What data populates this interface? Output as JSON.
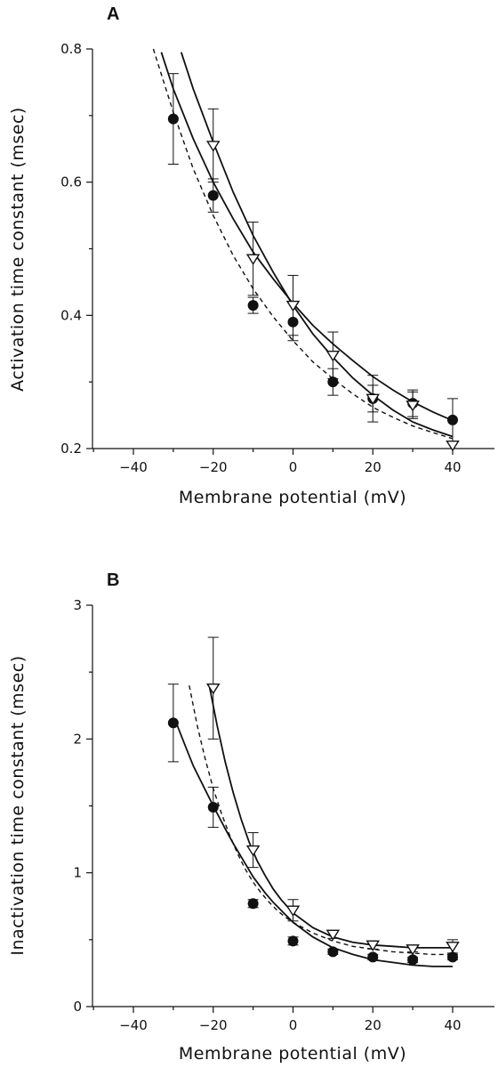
{
  "chart_data": [
    {
      "panel": "A",
      "type": "scatter",
      "xlabel": "Membrane potential (mV)",
      "ylabel": "Activation time constant (msec)",
      "xlim": [
        -50,
        50
      ],
      "ylim": [
        0.2,
        0.8
      ],
      "xticks": [
        -40,
        -20,
        0,
        20,
        40
      ],
      "yticks": [
        0.2,
        0.4,
        0.6,
        0.8
      ],
      "ytick_labels": [
        "0.2",
        "0.4",
        "0.6",
        "0.8"
      ],
      "grid": false,
      "series": [
        {
          "marker": "filled-circle",
          "x": [
            -30,
            -20,
            -10,
            0,
            10,
            20,
            30,
            40
          ],
          "y": [
            0.695,
            0.58,
            0.415,
            0.39,
            0.3,
            0.275,
            0.268,
            0.243
          ],
          "err": [
            0.068,
            0.025,
            0.012,
            0.028,
            0.02,
            0.035,
            0.02,
            0.032
          ]
        },
        {
          "marker": "open-triangle-down",
          "x": [
            -20,
            -10,
            0,
            10,
            20,
            30,
            40
          ],
          "y": [
            0.655,
            0.485,
            0.415,
            0.34,
            0.275,
            0.265,
            0.205
          ],
          "err": [
            0.055,
            0.055,
            0.045,
            0.035,
            0.02,
            0.02,
            0.0
          ]
        }
      ],
      "fits": [
        {
          "style": "solid",
          "x": [
            -33,
            -30,
            -25,
            -20,
            -15,
            -10,
            -5,
            0,
            5,
            10,
            15,
            20,
            25,
            30,
            35,
            40
          ],
          "y": [
            0.795,
            0.74,
            0.665,
            0.6,
            0.545,
            0.495,
            0.455,
            0.418,
            0.385,
            0.357,
            0.332,
            0.308,
            0.288,
            0.27,
            0.255,
            0.242
          ]
        },
        {
          "style": "solid",
          "x": [
            -28,
            -25,
            -20,
            -15,
            -10,
            -5,
            0,
            5,
            10,
            15,
            20,
            25,
            30,
            35,
            40
          ],
          "y": [
            0.795,
            0.74,
            0.66,
            0.585,
            0.52,
            0.465,
            0.415,
            0.372,
            0.337,
            0.306,
            0.28,
            0.258,
            0.24,
            0.228,
            0.218
          ]
        },
        {
          "style": "dashed",
          "x": [
            -35,
            -30,
            -25,
            -20,
            -15,
            -10,
            -5,
            0,
            5,
            10,
            15,
            20,
            25,
            30,
            35,
            40
          ],
          "y": [
            0.8,
            0.705,
            0.62,
            0.55,
            0.49,
            0.44,
            0.398,
            0.362,
            0.33,
            0.305,
            0.282,
            0.262,
            0.247,
            0.234,
            0.224,
            0.215
          ]
        }
      ]
    },
    {
      "panel": "B",
      "type": "scatter",
      "xlabel": "Membrane potential (mV)",
      "ylabel": "Inactivation time constant (msec)",
      "xlim": [
        -50,
        50
      ],
      "ylim": [
        0,
        3
      ],
      "xticks": [
        -40,
        -20,
        0,
        20,
        40
      ],
      "yticks": [
        0,
        1,
        2,
        3
      ],
      "ytick_labels": [
        "0",
        "1",
        "2",
        "3"
      ],
      "grid": false,
      "series": [
        {
          "marker": "filled-circle",
          "x": [
            -30,
            -20,
            -10,
            0,
            10,
            20,
            30,
            40
          ],
          "y": [
            2.12,
            1.49,
            0.77,
            0.49,
            0.41,
            0.37,
            0.35,
            0.37
          ],
          "err": [
            0.29,
            0.15,
            0.03,
            0.03,
            0.02,
            0.02,
            0.02,
            0.02
          ]
        },
        {
          "marker": "open-triangle-down",
          "x": [
            -20,
            -10,
            0,
            10,
            20,
            30,
            40
          ],
          "y": [
            2.38,
            1.17,
            0.72,
            0.54,
            0.46,
            0.43,
            0.45
          ],
          "err": [
            0.38,
            0.13,
            0.08,
            0.03,
            0.03,
            0.02,
            0.05
          ]
        }
      ],
      "fits": [
        {
          "style": "solid",
          "x": [
            -29,
            -27,
            -25,
            -22,
            -20,
            -17,
            -15,
            -12,
            -10,
            -7,
            -5,
            -2,
            0,
            5,
            10,
            15,
            20,
            25,
            30,
            35,
            40
          ],
          "y": [
            2.1,
            1.95,
            1.8,
            1.62,
            1.5,
            1.33,
            1.22,
            1.07,
            0.97,
            0.85,
            0.78,
            0.69,
            0.63,
            0.52,
            0.44,
            0.39,
            0.35,
            0.33,
            0.31,
            0.3,
            0.3
          ]
        },
        {
          "style": "solid",
          "x": [
            -21,
            -19,
            -17,
            -15,
            -13,
            -11,
            -9,
            -7,
            -5,
            -3,
            0,
            5,
            10,
            15,
            20,
            25,
            30,
            35,
            40
          ],
          "y": [
            2.4,
            2.1,
            1.83,
            1.6,
            1.4,
            1.23,
            1.09,
            0.98,
            0.88,
            0.8,
            0.7,
            0.59,
            0.52,
            0.48,
            0.46,
            0.45,
            0.44,
            0.44,
            0.44
          ]
        },
        {
          "style": "dashed",
          "x": [
            -26,
            -24,
            -22,
            -20,
            -18,
            -16,
            -14,
            -12,
            -10,
            -8,
            -6,
            -4,
            -2,
            0,
            5,
            10,
            15,
            20,
            25,
            30,
            35,
            40
          ],
          "y": [
            2.4,
            2.1,
            1.85,
            1.63,
            1.45,
            1.29,
            1.15,
            1.03,
            0.93,
            0.85,
            0.78,
            0.72,
            0.67,
            0.63,
            0.55,
            0.49,
            0.45,
            0.43,
            0.41,
            0.4,
            0.39,
            0.39
          ]
        }
      ]
    }
  ]
}
